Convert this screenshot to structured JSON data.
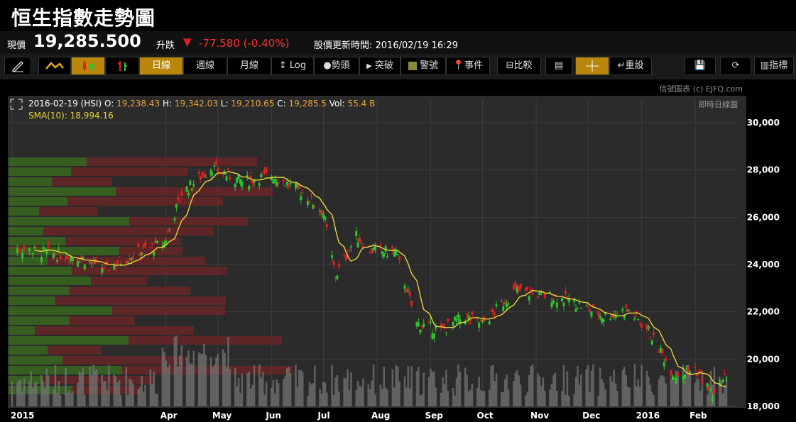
{
  "header": {
    "title": "恒生指數走勢圖"
  },
  "quote": {
    "price_label": "現價",
    "price": "19,285.500",
    "change_label": "升跌",
    "change": "-77.580 (-0.40%)",
    "update": "股價更新時間: 2016/02/19 16:29"
  },
  "toolbar": {
    "day": "日線",
    "week": "週線",
    "month": "月線",
    "log": "Log",
    "trend": "勢頭",
    "breakout": "突破",
    "alert": "警號",
    "event": "事件",
    "compare": "比較",
    "reset": "重設",
    "indicator": "指標"
  },
  "credit": "信號圖表 (c) EJFQ.com",
  "realtime": "即時日線圖",
  "info": {
    "date": "2016-02-19",
    "code": "(HSI)",
    "o_label": "O:",
    "o": "19,238.43",
    "h_label": "H:",
    "h": "19,342.03",
    "l_label": "L:",
    "l": "19,210.65",
    "c_label": "C:",
    "c": "19,285.5",
    "vol_label": "Vol:",
    "vol": "55.4 B",
    "sma": "SMA(10): 18,994.16"
  },
  "colors": {
    "up": "#2fc42f",
    "down": "#e02020",
    "sma": "#e8d23a",
    "accent": "#b8860b"
  },
  "chart_data": {
    "type": "candlestick",
    "x_labels": [
      "2015",
      "Apr",
      "May",
      "Jun",
      "Jul",
      "Aug",
      "Sep",
      "Oct",
      "Nov",
      "Dec",
      "2016",
      "Feb"
    ],
    "y_ticks": [
      "30,000",
      "28,000",
      "26,000",
      "24,000",
      "22,000",
      "20,000",
      "18,000"
    ],
    "ylim": [
      18000,
      30000
    ],
    "trend": [
      [
        "2015-01-02",
        24700
      ],
      [
        "2015-02-10",
        24300
      ],
      [
        "2015-02-25",
        23800
      ],
      [
        "2015-03-15",
        24500
      ],
      [
        "2015-03-31",
        24900
      ],
      [
        "2015-04-10",
        27000
      ],
      [
        "2015-04-27",
        28100
      ],
      [
        "2015-05-15",
        27500
      ],
      [
        "2015-06-01",
        27800
      ],
      [
        "2015-06-20",
        27000
      ],
      [
        "2015-07-01",
        26200
      ],
      [
        "2015-07-08",
        23500
      ],
      [
        "2015-07-20",
        25200
      ],
      [
        "2015-07-28",
        24600
      ],
      [
        "2015-08-12",
        24500
      ],
      [
        "2015-08-24",
        21500
      ],
      [
        "2015-09-07",
        21200
      ],
      [
        "2015-09-20",
        21800
      ],
      [
        "2015-10-01",
        21500
      ],
      [
        "2015-10-20",
        22900
      ],
      [
        "2015-11-05",
        22700
      ],
      [
        "2015-11-20",
        22500
      ],
      [
        "2015-12-10",
        21800
      ],
      [
        "2015-12-24",
        22100
      ],
      [
        "2016-01-05",
        21200
      ],
      [
        "2016-01-20",
        19300
      ],
      [
        "2016-02-01",
        19600
      ],
      [
        "2016-02-12",
        18400
      ],
      [
        "2016-02-19",
        19285
      ]
    ]
  }
}
